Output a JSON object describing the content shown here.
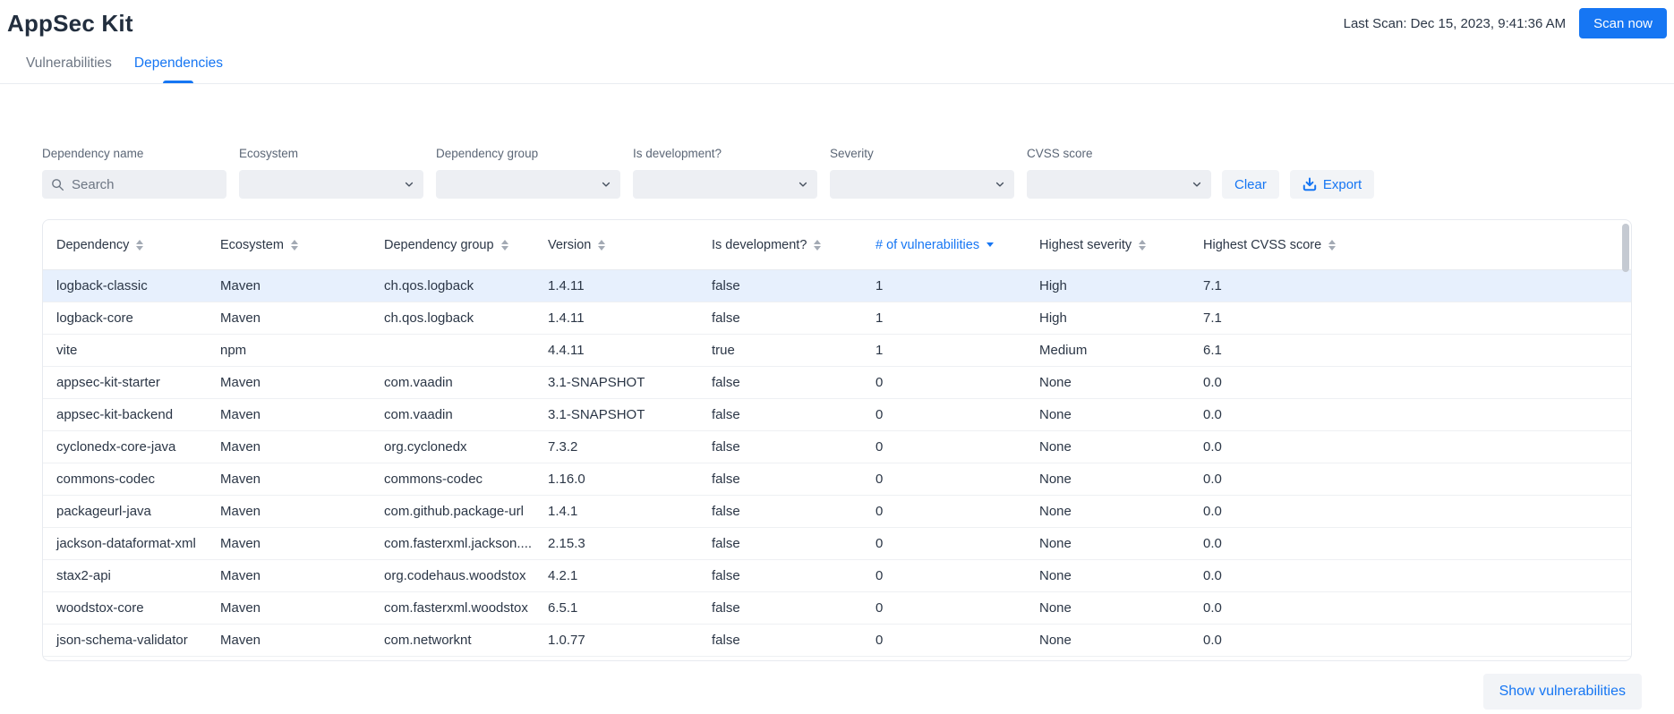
{
  "header": {
    "title": "AppSec Kit",
    "last_scan": "Last Scan: Dec 15, 2023, 9:41:36 AM",
    "scan_button": "Scan now"
  },
  "tabs": [
    {
      "label": "Vulnerabilities",
      "active": false
    },
    {
      "label": "Dependencies",
      "active": true
    }
  ],
  "filters": {
    "search": {
      "label": "Dependency name",
      "placeholder": "Search",
      "value": ""
    },
    "dropdowns": [
      {
        "label": "Ecosystem",
        "value": ""
      },
      {
        "label": "Dependency group",
        "value": ""
      },
      {
        "label": "Is development?",
        "value": ""
      },
      {
        "label": "Severity",
        "value": ""
      },
      {
        "label": "CVSS score",
        "value": ""
      }
    ],
    "clear_button": "Clear",
    "export_button": "Export"
  },
  "table": {
    "columns": [
      {
        "label": "Dependency",
        "sort": "none"
      },
      {
        "label": "Ecosystem",
        "sort": "none"
      },
      {
        "label": "Dependency group",
        "sort": "none"
      },
      {
        "label": "Version",
        "sort": "none"
      },
      {
        "label": "Is development?",
        "sort": "none"
      },
      {
        "label": "# of vulnerabilities",
        "sort": "desc"
      },
      {
        "label": "Highest severity",
        "sort": "none"
      },
      {
        "label": "Highest CVSS score",
        "sort": "none"
      }
    ],
    "rows": [
      {
        "dependency": "logback-classic",
        "ecosystem": "Maven",
        "group": "ch.qos.logback",
        "version": "1.4.11",
        "is_development": "false",
        "vulnerabilities": "1",
        "severity": "High",
        "cvss": "7.1",
        "selected": true
      },
      {
        "dependency": "logback-core",
        "ecosystem": "Maven",
        "group": "ch.qos.logback",
        "version": "1.4.11",
        "is_development": "false",
        "vulnerabilities": "1",
        "severity": "High",
        "cvss": "7.1",
        "selected": false
      },
      {
        "dependency": "vite",
        "ecosystem": "npm",
        "group": "",
        "version": "4.4.11",
        "is_development": "true",
        "vulnerabilities": "1",
        "severity": "Medium",
        "cvss": "6.1",
        "selected": false
      },
      {
        "dependency": "appsec-kit-starter",
        "ecosystem": "Maven",
        "group": "com.vaadin",
        "version": "3.1-SNAPSHOT",
        "is_development": "false",
        "vulnerabilities": "0",
        "severity": "None",
        "cvss": "0.0",
        "selected": false
      },
      {
        "dependency": "appsec-kit-backend",
        "ecosystem": "Maven",
        "group": "com.vaadin",
        "version": "3.1-SNAPSHOT",
        "is_development": "false",
        "vulnerabilities": "0",
        "severity": "None",
        "cvss": "0.0",
        "selected": false
      },
      {
        "dependency": "cyclonedx-core-java",
        "ecosystem": "Maven",
        "group": "org.cyclonedx",
        "version": "7.3.2",
        "is_development": "false",
        "vulnerabilities": "0",
        "severity": "None",
        "cvss": "0.0",
        "selected": false
      },
      {
        "dependency": "commons-codec",
        "ecosystem": "Maven",
        "group": "commons-codec",
        "version": "1.16.0",
        "is_development": "false",
        "vulnerabilities": "0",
        "severity": "None",
        "cvss": "0.0",
        "selected": false
      },
      {
        "dependency": "packageurl-java",
        "ecosystem": "Maven",
        "group": "com.github.package-url",
        "version": "1.4.1",
        "is_development": "false",
        "vulnerabilities": "0",
        "severity": "None",
        "cvss": "0.0",
        "selected": false
      },
      {
        "dependency": "jackson-dataformat-xml",
        "ecosystem": "Maven",
        "group": "com.fasterxml.jackson....",
        "version": "2.15.3",
        "is_development": "false",
        "vulnerabilities": "0",
        "severity": "None",
        "cvss": "0.0",
        "selected": false
      },
      {
        "dependency": "stax2-api",
        "ecosystem": "Maven",
        "group": "org.codehaus.woodstox",
        "version": "4.2.1",
        "is_development": "false",
        "vulnerabilities": "0",
        "severity": "None",
        "cvss": "0.0",
        "selected": false
      },
      {
        "dependency": "woodstox-core",
        "ecosystem": "Maven",
        "group": "com.fasterxml.woodstox",
        "version": "6.5.1",
        "is_development": "false",
        "vulnerabilities": "0",
        "severity": "None",
        "cvss": "0.0",
        "selected": false
      },
      {
        "dependency": "json-schema-validator",
        "ecosystem": "Maven",
        "group": "com.networknt",
        "version": "1.0.77",
        "is_development": "false",
        "vulnerabilities": "0",
        "severity": "None",
        "cvss": "0.0",
        "selected": false
      }
    ]
  },
  "footer": {
    "show_vulnerabilities_button": "Show vulnerabilities"
  },
  "colors": {
    "accent": "#1676f3",
    "selected_row_bg": "#e7f0fd",
    "field_bg": "#edeff3",
    "secondary_button_bg": "#f2f4f7",
    "border": "#e7eaef"
  }
}
